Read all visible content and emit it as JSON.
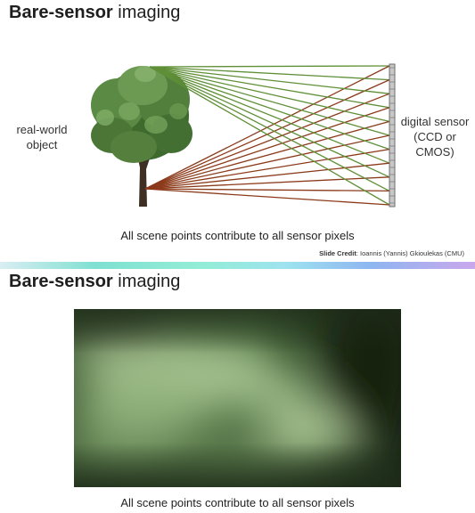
{
  "slide1": {
    "title_bold": "Bare-sensor",
    "title_rest": " imaging",
    "object_label": "real-world object",
    "sensor_label": "digital sensor (CCD or CMOS)",
    "caption": "All scene points contribute to all sensor pixels",
    "credit_bold": "Slide Credit",
    "credit_rest": ": Ioannis (Yannis) Gkioulekas (CMU)",
    "ray_colors": {
      "top": "#5f8f37",
      "bottom": "#8b3a1a"
    }
  },
  "slide2": {
    "title_bold": "Bare-sensor",
    "title_rest": " imaging",
    "caption": "All scene points contribute to all sensor pixels"
  }
}
